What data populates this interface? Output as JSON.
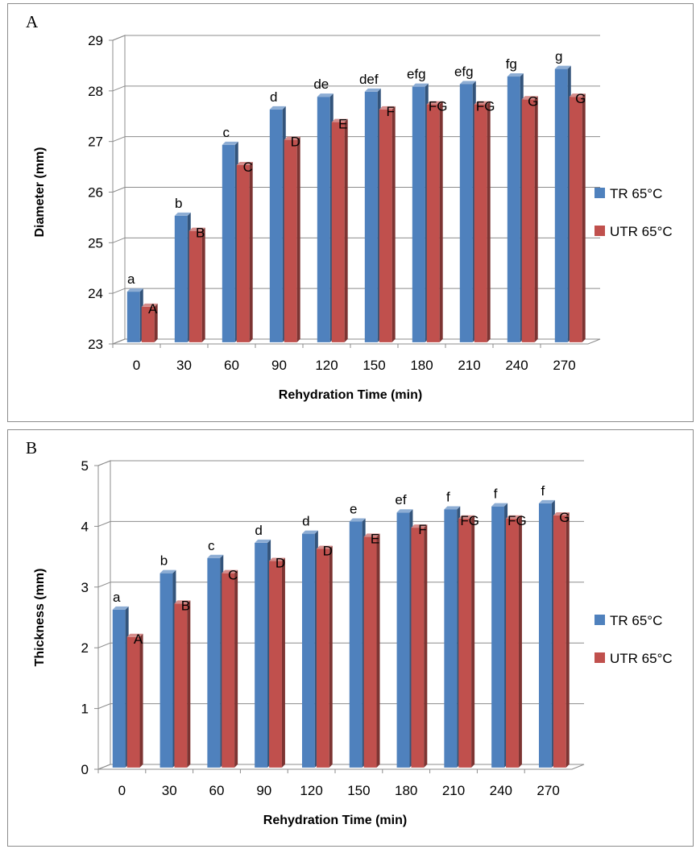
{
  "chart_data": [
    {
      "panel_label": "A",
      "type": "bar",
      "view": "3d",
      "xlabel": "Rehydration Time (min)",
      "ylabel": "Diameter (mm)",
      "ylim": [
        23,
        29
      ],
      "yticks": [
        23,
        24,
        25,
        26,
        27,
        28,
        29
      ],
      "grid": true,
      "legend_position": "right",
      "categories": [
        "0",
        "30",
        "60",
        "90",
        "120",
        "150",
        "180",
        "210",
        "240",
        "270"
      ],
      "series": [
        {
          "name": "TR 65°C",
          "color": "#4f81bd",
          "values": [
            24.0,
            25.5,
            26.9,
            27.6,
            27.85,
            27.95,
            28.05,
            28.1,
            28.25,
            28.4
          ],
          "labels": [
            "a",
            "b",
            "c",
            "d",
            "de",
            "def",
            "efg",
            "efg",
            "fg",
            "g"
          ]
        },
        {
          "name": "UTR 65°C",
          "color": "#c0504d",
          "values": [
            23.7,
            25.2,
            26.5,
            27.0,
            27.35,
            27.6,
            27.7,
            27.7,
            27.8,
            27.85
          ],
          "labels": [
            "A",
            "B",
            "C",
            "D",
            "E",
            "F",
            "FG",
            "FG",
            "G",
            "G"
          ]
        }
      ]
    },
    {
      "panel_label": "B",
      "type": "bar",
      "view": "3d",
      "xlabel": "Rehydration Time (min)",
      "ylabel": "Thickness (mm)",
      "ylim": [
        0,
        5
      ],
      "yticks": [
        0,
        1,
        2,
        3,
        4,
        5
      ],
      "grid": true,
      "legend_position": "right",
      "categories": [
        "0",
        "30",
        "60",
        "90",
        "120",
        "150",
        "180",
        "210",
        "240",
        "270"
      ],
      "series": [
        {
          "name": "TR 65°C",
          "color": "#4f81bd",
          "values": [
            2.6,
            3.2,
            3.45,
            3.7,
            3.85,
            4.05,
            4.2,
            4.25,
            4.3,
            4.35
          ],
          "labels": [
            "a",
            "b",
            "c",
            "d",
            "d",
            "e",
            "ef",
            "f",
            "f",
            "f"
          ]
        },
        {
          "name": "UTR 65°C",
          "color": "#c0504d",
          "values": [
            2.15,
            2.7,
            3.2,
            3.4,
            3.6,
            3.8,
            3.95,
            4.1,
            4.1,
            4.15
          ],
          "labels": [
            "A",
            "B",
            "C",
            "D",
            "D",
            "E",
            "F",
            "FG",
            "FG",
            "G"
          ]
        }
      ]
    }
  ]
}
